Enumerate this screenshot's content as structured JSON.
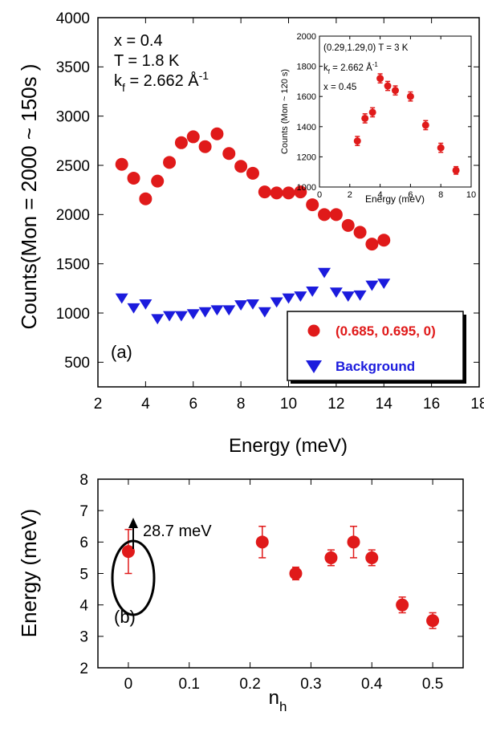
{
  "chart_data": [
    {
      "panel": "(a)",
      "type": "scatter",
      "xlabel": "Energy (meV)",
      "ylabel": "Counts(Mon = 2000 ~ 150s )",
      "xlim": [
        2,
        18
      ],
      "ylim": [
        250,
        4000
      ],
      "xticks": [
        2,
        4,
        6,
        8,
        10,
        12,
        14,
        16,
        18
      ],
      "yticks": [
        500,
        1000,
        1500,
        2000,
        2500,
        3000,
        3500,
        4000
      ],
      "annotations": [
        "x = 0.4",
        "T = 1.8 K",
        "k",
        "f",
        " = 2.662 Å",
        "-1"
      ],
      "legend": {
        "placement": "bottom-right"
      },
      "series": [
        {
          "name": "(0.685, 0.695, 0)",
          "marker": "circle",
          "color": "#e01a1a",
          "x": [
            3,
            3.5,
            4,
            4.5,
            5,
            5.5,
            6,
            6.5,
            7,
            7.5,
            8,
            8.5,
            9,
            9.5,
            10,
            10.5,
            11,
            11.5,
            12,
            12.5,
            13,
            13.5,
            14
          ],
          "y": [
            2510,
            2370,
            2160,
            2340,
            2530,
            2730,
            2790,
            2690,
            2820,
            2620,
            2490,
            2420,
            2230,
            2220,
            2220,
            2230,
            2100,
            2000,
            2000,
            1890,
            1820,
            1700,
            1740
          ]
        },
        {
          "name": "Background",
          "marker": "triangle-down",
          "color": "#1b1bdd",
          "x": [
            3,
            3.5,
            4,
            4.5,
            5,
            5.5,
            6,
            6.5,
            7,
            7.5,
            8,
            8.5,
            9,
            9.5,
            10,
            10.5,
            11,
            11.5,
            12,
            12.5,
            13,
            13.5,
            14
          ],
          "y": [
            1150,
            1050,
            1090,
            940,
            970,
            970,
            990,
            1010,
            1030,
            1030,
            1080,
            1090,
            1010,
            1110,
            1150,
            1170,
            1220,
            1410,
            1210,
            1170,
            1180,
            1280,
            1300
          ]
        }
      ]
    },
    {
      "panel": "inset",
      "type": "scatter",
      "xlabel": "Energy (meV)",
      "ylabel": "Counts (Mon ~ 120 s)",
      "xlim": [
        0,
        10
      ],
      "ylim": [
        1000,
        2000
      ],
      "xticks": [
        0,
        2,
        4,
        6,
        8,
        10
      ],
      "yticks": [
        1000,
        1200,
        1400,
        1600,
        1800,
        2000
      ],
      "annotations": [
        "(0.29,1.29,0) T = 3 K",
        "k",
        "f",
        " = 2.662 Å",
        "-1",
        "x = 0.45"
      ],
      "series": [
        {
          "marker": "circle",
          "color": "#e01a1a",
          "x": [
            2.5,
            3,
            3.5,
            4,
            4.5,
            5,
            6,
            7,
            8,
            9
          ],
          "y": [
            1305,
            1455,
            1495,
            1720,
            1670,
            1640,
            1600,
            1410,
            1260,
            1110
          ],
          "err": [
            30,
            30,
            30,
            30,
            30,
            30,
            30,
            30,
            30,
            25
          ]
        }
      ]
    },
    {
      "panel": "(b)",
      "type": "scatter",
      "xlabel": "n",
      "xlabel_sub": "h",
      "ylabel": "Energy (meV)",
      "xlim": [
        -0.05,
        0.55
      ],
      "ylim": [
        2,
        8
      ],
      "xticks": [
        0,
        0.1,
        0.2,
        0.3,
        0.4,
        0.5
      ],
      "yticks": [
        2,
        3,
        4,
        5,
        6,
        7,
        8
      ],
      "annotations": [
        "28.7 meV"
      ],
      "series": [
        {
          "marker": "circle",
          "color": "#e01a1a",
          "x": [
            0,
            0.22,
            0.275,
            0.333,
            0.37,
            0.4,
            0.45,
            0.5
          ],
          "y": [
            5.7,
            6.0,
            5.0,
            5.5,
            6.0,
            5.5,
            4.0,
            3.5
          ],
          "err": [
            0.7,
            0.5,
            0.2,
            0.25,
            0.5,
            0.25,
            0.25,
            0.25
          ]
        }
      ]
    }
  ]
}
